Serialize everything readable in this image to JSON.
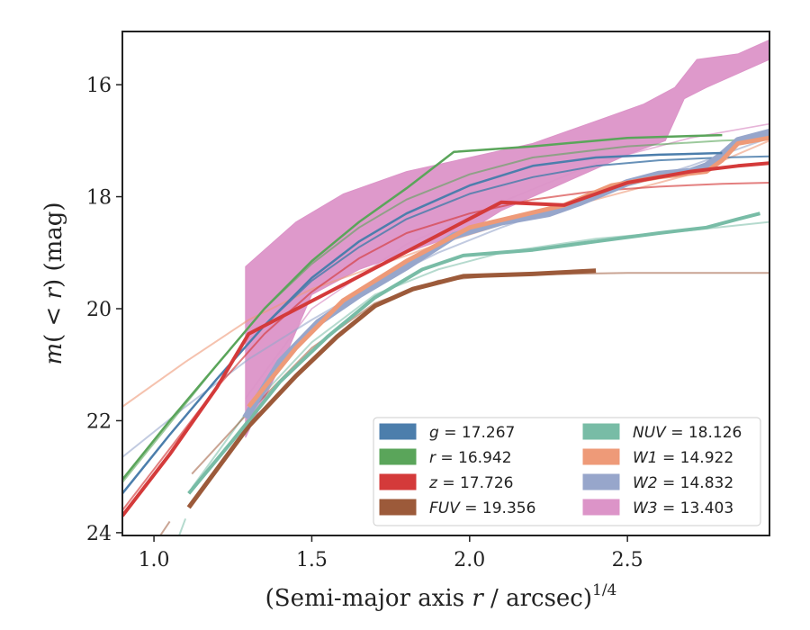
{
  "chart_data": {
    "type": "line",
    "xlabel": "(Semi-major axis r / arcsec)",
    "xlabel_parts": {
      "prefix": "(Semi-major axis ",
      "italic": "r",
      "suffix": " / arcsec)",
      "sup": "1/4"
    },
    "ylabel": "m(<r) (mag)",
    "ylabel_parts": {
      "m": "m",
      "open": "(",
      "lt": "<",
      "r": "r",
      "close": ")",
      "unit": " (mag)"
    },
    "xlim": [
      0.9,
      2.95
    ],
    "ylim": [
      24.05,
      15.05
    ],
    "y_inverted": true,
    "xticks": [
      {
        "v": 1.0,
        "label": "1.0"
      },
      {
        "v": 1.5,
        "label": "1.5"
      },
      {
        "v": 2.0,
        "label": "2.0"
      },
      {
        "v": 2.5,
        "label": "2.5"
      }
    ],
    "yticks": [
      {
        "v": 16,
        "label": "16"
      },
      {
        "v": 18,
        "label": "18"
      },
      {
        "v": 20,
        "label": "20"
      },
      {
        "v": 22,
        "label": "22"
      },
      {
        "v": 24,
        "label": "24"
      }
    ],
    "grid": false,
    "legend_position": "lower-right",
    "legend": [
      {
        "band": "g",
        "value": "17.267",
        "color": "#4c7eac",
        "column": 0
      },
      {
        "band": "r",
        "value": "16.942",
        "color": "#5aa55a",
        "column": 0
      },
      {
        "band": "z",
        "value": "17.726",
        "color": "#d43a3a",
        "column": 0
      },
      {
        "band": "FUV",
        "value": "19.356",
        "color": "#9c5a3a",
        "column": 0
      },
      {
        "band": "NUV",
        "value": "18.126",
        "color": "#78bca6",
        "column": 1
      },
      {
        "band": "W1",
        "value": "14.922",
        "color": "#ee9a78",
        "column": 1
      },
      {
        "band": "W2",
        "value": "14.832",
        "color": "#97a6cb",
        "column": 1
      },
      {
        "band": "W3",
        "value": "13.403",
        "color": "#dc94c8",
        "column": 1
      }
    ],
    "series": [
      {
        "key": "W3",
        "kind": "band",
        "color": "#dc94c8",
        "upper": [
          [
            1.29,
            19.25
          ],
          [
            1.45,
            18.45
          ],
          [
            1.6,
            17.95
          ],
          [
            1.8,
            17.55
          ],
          [
            2.0,
            17.3
          ],
          [
            2.2,
            17.05
          ],
          [
            2.4,
            16.65
          ],
          [
            2.55,
            16.35
          ],
          [
            2.65,
            16.05
          ],
          [
            2.72,
            15.55
          ],
          [
            2.85,
            15.45
          ],
          [
            2.95,
            15.2
          ]
        ],
        "lower": [
          [
            2.95,
            15.55
          ],
          [
            2.85,
            15.8
          ],
          [
            2.75,
            16.05
          ],
          [
            2.68,
            16.25
          ],
          [
            2.62,
            17.0
          ],
          [
            2.5,
            17.25
          ],
          [
            2.3,
            17.75
          ],
          [
            2.1,
            18.25
          ],
          [
            2.0,
            18.6
          ],
          [
            1.8,
            19.0
          ],
          [
            1.65,
            19.3
          ],
          [
            1.5,
            19.75
          ],
          [
            1.42,
            20.8
          ],
          [
            1.35,
            21.6
          ],
          [
            1.29,
            22.3
          ]
        ]
      },
      {
        "key": "W3fit",
        "kind": "line",
        "color": "#dc94c8",
        "width": 1.6,
        "opacity": 0.7,
        "points": [
          [
            1.29,
            21.6
          ],
          [
            1.5,
            20.0
          ],
          [
            1.8,
            18.85
          ],
          [
            2.1,
            18.1
          ],
          [
            2.4,
            17.4
          ],
          [
            2.7,
            16.95
          ],
          [
            2.95,
            16.7
          ]
        ]
      },
      {
        "key": "W1fit",
        "kind": "line",
        "color": "#ee9a78",
        "width": 2,
        "opacity": 0.6,
        "points": [
          [
            0.9,
            21.75
          ],
          [
            1.1,
            20.95
          ],
          [
            1.3,
            20.2
          ],
          [
            1.5,
            19.65
          ],
          [
            1.7,
            19.25
          ],
          [
            1.9,
            18.85
          ],
          [
            2.1,
            18.5
          ],
          [
            2.3,
            18.2
          ],
          [
            2.5,
            17.9
          ],
          [
            2.7,
            17.6
          ],
          [
            2.95,
            17.0
          ]
        ]
      },
      {
        "key": "W2fit",
        "kind": "line",
        "color": "#97a6cb",
        "width": 2,
        "opacity": 0.6,
        "points": [
          [
            0.9,
            22.65
          ],
          [
            1.1,
            21.75
          ],
          [
            1.3,
            20.9
          ],
          [
            1.5,
            20.2
          ],
          [
            1.7,
            19.55
          ],
          [
            1.9,
            19.0
          ],
          [
            2.1,
            18.55
          ],
          [
            2.3,
            18.15
          ],
          [
            2.5,
            17.8
          ],
          [
            2.7,
            17.45
          ],
          [
            2.95,
            16.95
          ]
        ]
      },
      {
        "key": "NUVfit",
        "kind": "line",
        "color": "#78bca6",
        "width": 2,
        "opacity": 0.55,
        "points": [
          [
            1.12,
            23.2
          ],
          [
            1.3,
            21.8
          ],
          [
            1.5,
            20.6
          ],
          [
            1.7,
            19.75
          ],
          [
            1.9,
            19.3
          ],
          [
            2.1,
            19.0
          ],
          [
            2.4,
            18.75
          ],
          [
            2.7,
            18.6
          ],
          [
            2.95,
            18.45
          ]
        ]
      },
      {
        "key": "FUVfit",
        "kind": "line",
        "color": "#9c5a3a",
        "width": 2,
        "opacity": 0.55,
        "points": [
          [
            1.12,
            22.95
          ],
          [
            1.3,
            21.85
          ],
          [
            1.5,
            20.7
          ],
          [
            1.7,
            19.9
          ],
          [
            1.9,
            19.5
          ],
          [
            2.1,
            19.4
          ],
          [
            2.5,
            19.36
          ],
          [
            2.95,
            19.36
          ]
        ]
      },
      {
        "key": "FUVtail",
        "kind": "line",
        "color": "#9c5a3a",
        "width": 2,
        "opacity": 0.55,
        "points": [
          [
            1.02,
            24.05
          ],
          [
            1.05,
            23.8
          ]
        ]
      },
      {
        "key": "NUVtail",
        "kind": "line",
        "color": "#78bca6",
        "width": 2,
        "opacity": 0.55,
        "points": [
          [
            1.08,
            24.05
          ],
          [
            1.1,
            23.75
          ]
        ]
      },
      {
        "key": "gfit",
        "kind": "line",
        "color": "#4c7eac",
        "width": 2,
        "opacity": 0.85,
        "points": [
          [
            0.9,
            23.3
          ],
          [
            1.05,
            22.25
          ],
          [
            1.2,
            21.25
          ],
          [
            1.35,
            20.3
          ],
          [
            1.5,
            19.5
          ],
          [
            1.65,
            18.9
          ],
          [
            1.8,
            18.4
          ],
          [
            2.0,
            17.95
          ],
          [
            2.2,
            17.65
          ],
          [
            2.4,
            17.45
          ],
          [
            2.6,
            17.35
          ],
          [
            2.8,
            17.3
          ],
          [
            2.95,
            17.28
          ]
        ]
      },
      {
        "key": "rfit",
        "kind": "line",
        "color": "#5aa55a",
        "width": 2,
        "opacity": 0.6,
        "points": [
          [
            0.9,
            23.1
          ],
          [
            1.05,
            22.05
          ],
          [
            1.2,
            21.0
          ],
          [
            1.35,
            20.0
          ],
          [
            1.5,
            19.2
          ],
          [
            1.65,
            18.55
          ],
          [
            1.8,
            18.05
          ],
          [
            2.0,
            17.6
          ],
          [
            2.2,
            17.3
          ],
          [
            2.5,
            17.1
          ],
          [
            2.8,
            17.0
          ],
          [
            2.95,
            16.97
          ]
        ]
      },
      {
        "key": "zfit",
        "kind": "line",
        "color": "#d43a3a",
        "width": 2,
        "opacity": 0.65,
        "points": [
          [
            0.9,
            23.6
          ],
          [
            1.05,
            22.5
          ],
          [
            1.2,
            21.4
          ],
          [
            1.35,
            20.45
          ],
          [
            1.5,
            19.7
          ],
          [
            1.65,
            19.1
          ],
          [
            1.8,
            18.65
          ],
          [
            2.0,
            18.3
          ],
          [
            2.2,
            18.05
          ],
          [
            2.4,
            17.9
          ],
          [
            2.6,
            17.82
          ],
          [
            2.8,
            17.77
          ],
          [
            2.95,
            17.75
          ]
        ]
      },
      {
        "key": "FUV",
        "kind": "thick",
        "color": "#9c5a3a",
        "width": 5,
        "points": [
          [
            1.11,
            23.55
          ],
          [
            1.3,
            22.1
          ],
          [
            1.45,
            21.2
          ],
          [
            1.58,
            20.5
          ],
          [
            1.7,
            19.95
          ],
          [
            1.82,
            19.65
          ],
          [
            1.98,
            19.42
          ],
          [
            2.2,
            19.38
          ],
          [
            2.4,
            19.32
          ]
        ]
      },
      {
        "key": "NUV",
        "kind": "thick",
        "color": "#78bca6",
        "width": 4,
        "points": [
          [
            1.11,
            23.3
          ],
          [
            1.25,
            22.35
          ],
          [
            1.4,
            21.3
          ],
          [
            1.55,
            20.5
          ],
          [
            1.7,
            19.8
          ],
          [
            1.85,
            19.3
          ],
          [
            1.98,
            19.05
          ],
          [
            2.2,
            18.95
          ],
          [
            2.4,
            18.8
          ],
          [
            2.6,
            18.65
          ],
          [
            2.75,
            18.55
          ],
          [
            2.85,
            18.4
          ],
          [
            2.92,
            18.3
          ]
        ]
      },
      {
        "key": "W2",
        "kind": "thick",
        "color": "#97a6cb",
        "width": 8,
        "points": [
          [
            1.29,
            21.95
          ],
          [
            1.4,
            20.95
          ],
          [
            1.52,
            20.25
          ],
          [
            1.65,
            19.75
          ],
          [
            1.8,
            19.25
          ],
          [
            1.95,
            18.7
          ],
          [
            2.1,
            18.45
          ],
          [
            2.25,
            18.3
          ],
          [
            2.35,
            18.1
          ],
          [
            2.5,
            17.75
          ],
          [
            2.6,
            17.6
          ],
          [
            2.7,
            17.55
          ],
          [
            2.75,
            17.45
          ],
          [
            2.8,
            17.25
          ],
          [
            2.85,
            17.0
          ],
          [
            2.95,
            16.85
          ]
        ]
      },
      {
        "key": "W1",
        "kind": "thick",
        "color": "#ee9a78",
        "width": 5,
        "points": [
          [
            1.3,
            21.75
          ],
          [
            1.45,
            20.7
          ],
          [
            1.6,
            19.85
          ],
          [
            1.8,
            19.15
          ],
          [
            2.0,
            18.55
          ],
          [
            2.15,
            18.35
          ],
          [
            2.3,
            18.15
          ],
          [
            2.45,
            17.8
          ],
          [
            2.6,
            17.65
          ],
          [
            2.75,
            17.55
          ],
          [
            2.8,
            17.35
          ],
          [
            2.85,
            17.05
          ],
          [
            2.95,
            16.95
          ]
        ]
      },
      {
        "key": "g",
        "kind": "thick",
        "color": "#4c7eac",
        "width": 2.5,
        "points": [
          [
            0.9,
            23.3
          ],
          [
            1.05,
            22.25
          ],
          [
            1.2,
            21.25
          ],
          [
            1.35,
            20.3
          ],
          [
            1.5,
            19.45
          ],
          [
            1.65,
            18.8
          ],
          [
            1.8,
            18.3
          ],
          [
            2.0,
            17.8
          ],
          [
            2.2,
            17.45
          ],
          [
            2.4,
            17.3
          ],
          [
            2.6,
            17.25
          ],
          [
            2.8,
            17.22
          ]
        ]
      },
      {
        "key": "r",
        "kind": "thick",
        "color": "#5aa55a",
        "width": 2.5,
        "points": [
          [
            0.9,
            23.05
          ],
          [
            1.05,
            22.0
          ],
          [
            1.2,
            21.0
          ],
          [
            1.35,
            20.0
          ],
          [
            1.5,
            19.15
          ],
          [
            1.65,
            18.45
          ],
          [
            1.8,
            17.85
          ],
          [
            1.95,
            17.2
          ],
          [
            2.2,
            17.1
          ],
          [
            2.5,
            16.95
          ],
          [
            2.8,
            16.9
          ]
        ]
      },
      {
        "key": "z",
        "kind": "thick",
        "color": "#d43a3a",
        "width": 4,
        "points": [
          [
            0.9,
            23.7
          ],
          [
            1.05,
            22.6
          ],
          [
            1.2,
            21.4
          ],
          [
            1.3,
            20.45
          ],
          [
            2.1,
            18.1
          ],
          [
            2.3,
            18.15
          ],
          [
            2.5,
            17.75
          ],
          [
            2.7,
            17.55
          ],
          [
            2.85,
            17.45
          ],
          [
            2.95,
            17.4
          ]
        ]
      }
    ]
  }
}
